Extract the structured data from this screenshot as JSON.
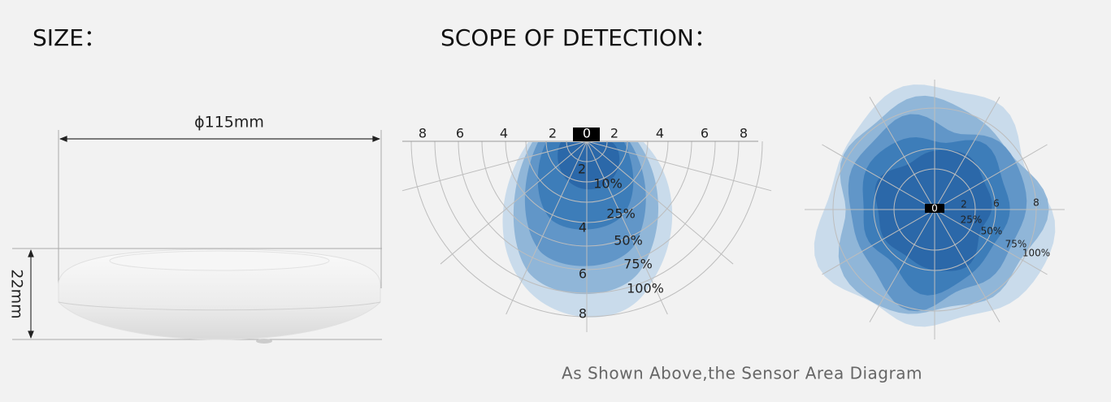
{
  "header": {
    "size_title": "SIZE：",
    "scope_title": "SCOPE OF DETECTION："
  },
  "size": {
    "diameter": "ϕ115mm",
    "height": "22mm"
  },
  "side_view": {
    "distance_labels": [
      "8",
      "6",
      "4",
      "2",
      "0",
      "2",
      "4",
      "6",
      "8"
    ],
    "depth_labels": [
      "2",
      "4",
      "6",
      "8"
    ],
    "coverage_labels": [
      "10%",
      "25%",
      "50%",
      "75%",
      "100%"
    ]
  },
  "top_view": {
    "center_label": "0",
    "distance_labels": [
      "2",
      "6",
      "8"
    ],
    "coverage_labels": [
      "25%",
      "50%",
      "75%",
      "100%"
    ]
  },
  "caption": "As Shown Above,the Sensor Area Diagram"
}
